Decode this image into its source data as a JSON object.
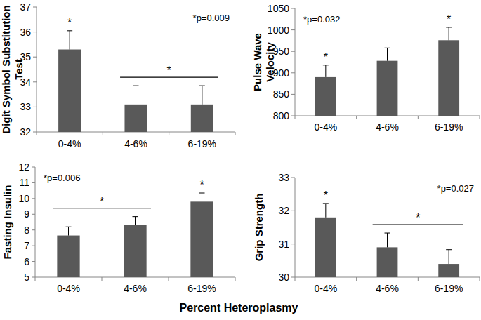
{
  "xlabel": "Percent Heteroplasmy",
  "chart_data": [
    {
      "type": "bar",
      "ylabel": "Digit Symbol Substitution Test",
      "categories": [
        "0-4%",
        "4-6%",
        "6-19%"
      ],
      "values": [
        35.3,
        33.1,
        33.1
      ],
      "errors": [
        0.75,
        0.75,
        0.75
      ],
      "color": "#595959",
      "ylim": [
        32,
        37
      ],
      "yticks": [
        32,
        33,
        34,
        35,
        36,
        37
      ],
      "grid": false,
      "annotations": [
        {
          "text": "*p=0.009"
        }
      ],
      "significance": [
        {
          "label": "*",
          "categories": [
            "0-4%"
          ]
        },
        {
          "label": "*",
          "categories": [
            "4-6%",
            "6-19%"
          ]
        }
      ]
    },
    {
      "type": "bar",
      "ylabel": "Pulse Wave Velocity",
      "categories": [
        "0-4%",
        "4-6%",
        "6-19%"
      ],
      "values": [
        890,
        928,
        976
      ],
      "errors": [
        28,
        30,
        30
      ],
      "color": "#595959",
      "ylim": [
        800,
        1050
      ],
      "yticks": [
        800,
        850,
        900,
        950,
        1000,
        1050
      ],
      "grid": false,
      "annotations": [
        {
          "text": "*p=0.032"
        }
      ],
      "significance": [
        {
          "label": "*",
          "categories": [
            "0-4%"
          ]
        },
        {
          "label": "*",
          "categories": [
            "6-19%"
          ]
        }
      ]
    },
    {
      "type": "bar",
      "ylabel": "Fasting Insulin",
      "categories": [
        "0-4%",
        "4-6%",
        "6-19%"
      ],
      "values": [
        7.65,
        8.3,
        9.8
      ],
      "errors": [
        0.55,
        0.55,
        0.55
      ],
      "color": "#595959",
      "ylim": [
        5,
        12
      ],
      "yticks": [
        5,
        6,
        7,
        8,
        9,
        10,
        11,
        12
      ],
      "grid": false,
      "annotations": [
        {
          "text": "*p=0.006"
        }
      ],
      "significance": [
        {
          "label": "*",
          "categories": [
            "0-4%",
            "4-6%"
          ]
        },
        {
          "label": "*",
          "categories": [
            "6-19%"
          ]
        }
      ]
    },
    {
      "type": "bar",
      "ylabel": "Grip Strength",
      "categories": [
        "0-4%",
        "4-6%",
        "6-19%"
      ],
      "values": [
        31.8,
        30.9,
        30.4
      ],
      "errors": [
        0.42,
        0.43,
        0.43
      ],
      "color": "#595959",
      "ylim": [
        30,
        33
      ],
      "yticks": [
        30,
        31,
        32,
        33
      ],
      "grid": false,
      "annotations": [
        {
          "text": "*p=0.027"
        }
      ],
      "significance": [
        {
          "label": "*",
          "categories": [
            "0-4%"
          ]
        },
        {
          "label": "*",
          "categories": [
            "4-6%",
            "6-19%"
          ]
        }
      ]
    }
  ]
}
